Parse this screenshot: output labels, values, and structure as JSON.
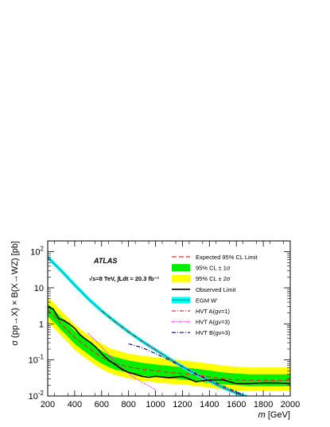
{
  "chart_data": {
    "type": "line",
    "xlabel_italic": "m",
    "xlabel_rest": " [GeV]",
    "ylabel": "σ (pp→X) × B(X→WZ) [pb]",
    "xlim": [
      200,
      2000
    ],
    "ylim_log10": [
      -2,
      2.3
    ],
    "y_log": true,
    "x_ticks": [
      200,
      400,
      600,
      800,
      1000,
      1200,
      1400,
      1600,
      1800,
      2000
    ],
    "x_tick_labels": [
      "200",
      "400",
      "600",
      "800",
      "1000",
      "1200",
      "1400",
      "1600",
      "1800",
      "2000"
    ],
    "y_tick_labels": [
      {
        "base": "10",
        "exp": "2",
        "log": 2
      },
      {
        "base": "10",
        "exp": "",
        "log": 1
      },
      {
        "base": "1",
        "exp": "",
        "log": 0
      },
      {
        "base": "10",
        "exp": "-1",
        "log": -1
      },
      {
        "base": "10",
        "exp": "-2",
        "log": -2
      }
    ],
    "annotations": {
      "experiment": "ATLAS",
      "energy": "√s=8 TeV, ∫Ldt = 20.3 fb⁻¹"
    },
    "legend_position": "top-right",
    "legend": [
      {
        "key": "expected",
        "label": "Expected 95% CL Limit"
      },
      {
        "key": "band1",
        "label": "95% CL ± 1σ"
      },
      {
        "key": "band2",
        "label": "95% CL ± 2σ"
      },
      {
        "key": "observed",
        "label": "Observed Limit"
      },
      {
        "key": "egm",
        "label": "EGM W'"
      },
      {
        "key": "hvtA1",
        "label": "HVT A(gv=1)"
      },
      {
        "key": "hvtA3",
        "label": "HVT A(gv=3)"
      },
      {
        "key": "hvtB3",
        "label": "HVT B(gv=3)"
      }
    ],
    "series": [
      {
        "key": "observed",
        "color": "#000000",
        "x": [
          200,
          240,
          280,
          320,
          360,
          400,
          440,
          480,
          520,
          560,
          600,
          650,
          700,
          750,
          800,
          850,
          900,
          950,
          1000,
          1100,
          1200,
          1300,
          1400,
          1500,
          1600,
          1700,
          1800,
          1900,
          2000
        ],
        "y": [
          3.0,
          2.6,
          1.4,
          1.25,
          1.0,
          0.75,
          0.5,
          0.38,
          0.3,
          0.22,
          0.15,
          0.1,
          0.075,
          0.055,
          0.045,
          0.04,
          0.035,
          0.033,
          0.035,
          0.032,
          0.035,
          0.025,
          0.028,
          0.028,
          0.022,
          0.022,
          0.023,
          0.023,
          0.022
        ]
      },
      {
        "key": "expected",
        "color": "#e0322e",
        "x": [
          200,
          250,
          300,
          350,
          400,
          450,
          500,
          550,
          600,
          650,
          700,
          800,
          900,
          1000,
          1100,
          1200,
          1300,
          1400,
          1500,
          1600,
          1700,
          1800,
          1900,
          2000
        ],
        "y": [
          2.4,
          1.6,
          1.0,
          0.65,
          0.42,
          0.3,
          0.22,
          0.16,
          0.12,
          0.095,
          0.08,
          0.065,
          0.055,
          0.05,
          0.045,
          0.042,
          0.038,
          0.034,
          0.03,
          0.028,
          0.027,
          0.027,
          0.027,
          0.027
        ]
      },
      {
        "key": "band1",
        "color": "#00ee00",
        "x": [
          200,
          250,
          300,
          350,
          400,
          450,
          500,
          550,
          600,
          650,
          700,
          800,
          900,
          1000,
          1100,
          1200,
          1300,
          1400,
          1500,
          1600,
          1700,
          1800,
          1900,
          2000
        ],
        "y_low": [
          1.6,
          1.1,
          0.68,
          0.44,
          0.28,
          0.2,
          0.145,
          0.105,
          0.08,
          0.064,
          0.054,
          0.044,
          0.037,
          0.034,
          0.031,
          0.029,
          0.026,
          0.023,
          0.021,
          0.02,
          0.019,
          0.019,
          0.019,
          0.019
        ],
        "y_high": [
          3.6,
          2.4,
          1.5,
          1.0,
          0.64,
          0.45,
          0.33,
          0.24,
          0.18,
          0.14,
          0.12,
          0.097,
          0.083,
          0.075,
          0.068,
          0.063,
          0.057,
          0.051,
          0.045,
          0.042,
          0.04,
          0.04,
          0.04,
          0.04
        ]
      },
      {
        "key": "band2",
        "color": "#ffff00",
        "x": [
          200,
          250,
          300,
          350,
          400,
          450,
          500,
          550,
          600,
          650,
          700,
          800,
          900,
          1000,
          1100,
          1200,
          1300,
          1400,
          1500,
          1600,
          1700,
          1800,
          1900,
          2000
        ],
        "y_low": [
          1.1,
          0.75,
          0.47,
          0.3,
          0.19,
          0.135,
          0.1,
          0.073,
          0.056,
          0.045,
          0.038,
          0.031,
          0.026,
          0.024,
          0.022,
          0.021,
          0.019,
          0.017,
          0.015,
          0.014,
          0.014,
          0.014,
          0.014,
          0.014
        ],
        "y_high": [
          5.5,
          3.6,
          2.3,
          1.5,
          0.95,
          0.68,
          0.5,
          0.37,
          0.28,
          0.22,
          0.19,
          0.15,
          0.13,
          0.118,
          0.107,
          0.098,
          0.088,
          0.079,
          0.07,
          0.065,
          0.062,
          0.062,
          0.062,
          0.062
        ]
      },
      {
        "key": "egm",
        "color": "#00a8a8",
        "band_color": "#00ffff",
        "x": [
          200,
          300,
          400,
          500,
          600,
          700,
          800,
          900,
          1000,
          1100,
          1200,
          1300,
          1400,
          1500,
          1600,
          1700
        ],
        "y": [
          70,
          30,
          12,
          5.0,
          2.3,
          1.15,
          0.6,
          0.33,
          0.19,
          0.11,
          0.065,
          0.04,
          0.026,
          0.017,
          0.012,
          0.009
        ]
      },
      {
        "key": "hvtA1",
        "color": "#d90000",
        "x": [
          600,
          700,
          800,
          900,
          1000,
          1100,
          1200,
          1300,
          1400,
          1500,
          1600,
          1700
        ],
        "y": [
          2.3,
          1.15,
          0.6,
          0.33,
          0.19,
          0.11,
          0.065,
          0.04,
          0.026,
          0.017,
          0.012,
          0.009
        ]
      },
      {
        "key": "hvtA3",
        "color": "#ff00ff",
        "x": [
          500,
          550,
          600,
          650,
          700,
          750,
          800,
          850,
          900,
          950,
          1000
        ],
        "y": [
          0.55,
          0.36,
          0.23,
          0.14,
          0.09,
          0.06,
          0.042,
          0.031,
          0.024,
          0.019,
          0.015
        ]
      },
      {
        "key": "hvtB3",
        "color": "#000080",
        "x": [
          800,
          900,
          1000,
          1100,
          1200,
          1300,
          1400,
          1500,
          1600,
          1700
        ],
        "y": [
          0.28,
          0.22,
          0.15,
          0.1,
          0.065,
          0.042,
          0.028,
          0.019,
          0.013,
          0.009
        ]
      }
    ]
  }
}
